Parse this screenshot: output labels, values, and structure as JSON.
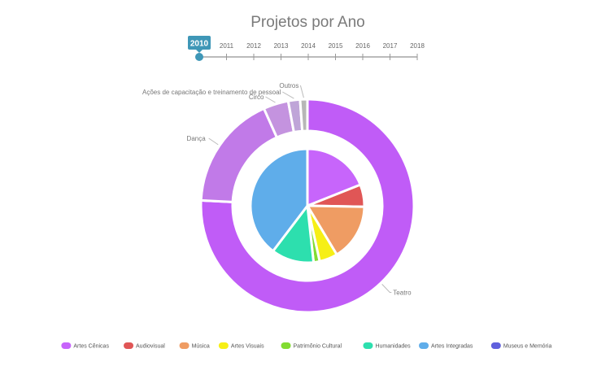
{
  "chart_data": {
    "type": "pie",
    "title": "Projetos por Ano",
    "timeline": {
      "years": [
        "2011",
        "2012",
        "2013",
        "2014",
        "2015",
        "2016",
        "2017",
        "2018"
      ],
      "current": "2010"
    },
    "outer_ring": {
      "slices": [
        {
          "label": "Teatro",
          "value": 75.8,
          "color": "#c05cf7"
        },
        {
          "label": "Dança",
          "value": 17.5,
          "color": "#c17ae8"
        },
        {
          "label": "Circo",
          "value": 3.8,
          "color": "#c493df"
        },
        {
          "label": "Ações de capacitação e treinamento de pessoal",
          "value": 1.8,
          "color": "#bfa5d8"
        },
        {
          "label": "Outros",
          "value": 1.1,
          "color": "#b7b7b7"
        }
      ]
    },
    "inner_pie": {
      "slices": [
        {
          "label": "Artes Cênicas",
          "value": 16.5,
          "color": "#c765fb"
        },
        {
          "label": "Audiovisual",
          "value": 5.5,
          "color": "#e05656"
        },
        {
          "label": "Música",
          "value": 14.0,
          "color": "#ef9c63"
        },
        {
          "label": "Artes Visuais",
          "value": 4.5,
          "color": "#f6ef16"
        },
        {
          "label": "Patrimônio Cultural",
          "value": 1.5,
          "color": "#82dc31"
        },
        {
          "label": "Humanidades",
          "value": 10.5,
          "color": "#2ddfae"
        },
        {
          "label": "Artes Integradas",
          "value": 34.5,
          "color": "#5fadea"
        },
        {
          "label": "Museus e Memória",
          "value": 0,
          "color": "#6060dd"
        }
      ]
    },
    "legend": [
      {
        "label": "Artes Cênicas",
        "color": "#c765fb"
      },
      {
        "label": "Audiovisual",
        "color": "#e05656"
      },
      {
        "label": "Música",
        "color": "#ef9c63"
      },
      {
        "label": "Artes Visuais",
        "color": "#f6ef16"
      },
      {
        "label": "Patrimônio Cultural",
        "color": "#82dc31"
      },
      {
        "label": "Humanidades",
        "color": "#2ddfae"
      },
      {
        "label": "Artes Integradas",
        "color": "#5fadea"
      },
      {
        "label": "Museus e Memória",
        "color": "#6060dd"
      }
    ],
    "legend_position": "bottom",
    "accent_color": "#3f97b7"
  }
}
